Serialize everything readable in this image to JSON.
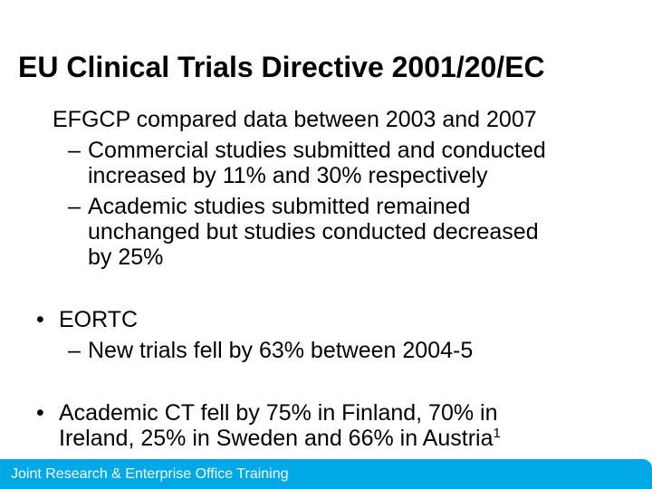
{
  "slide": {
    "title": "EU Clinical Trials Directive 2001/20/EC",
    "markers": {
      "bullet": "•",
      "dash": "–"
    },
    "colors": {
      "text": "#000000",
      "footer_bar": "#00A9E6",
      "footer_text": "#F2FBFE"
    },
    "efgcp": {
      "heading": "EFGCP compared data between 2003 and 2007",
      "commercial": {
        "lines": [
          "Commercial studies submitted and conducted",
          "increased by 11% and 30% respectively"
        ]
      },
      "academic_studies": {
        "lines": [
          "Academic studies submitted remained",
          "unchanged but studies conducted decreased",
          "by 25%"
        ]
      }
    },
    "eortc": {
      "heading": "EORTC",
      "new_trials": {
        "lines": [
          "New trials fell by 63% between 2004-5"
        ]
      }
    },
    "academic_ct": {
      "lines": [
        "Academic CT fell by 75% in Finland, 70% in",
        "Ireland, 25% in Sweden and 66% in Austria"
      ],
      "superscript": "1"
    },
    "footer": {
      "label": "Joint Research & Enterprise Office Training"
    }
  }
}
